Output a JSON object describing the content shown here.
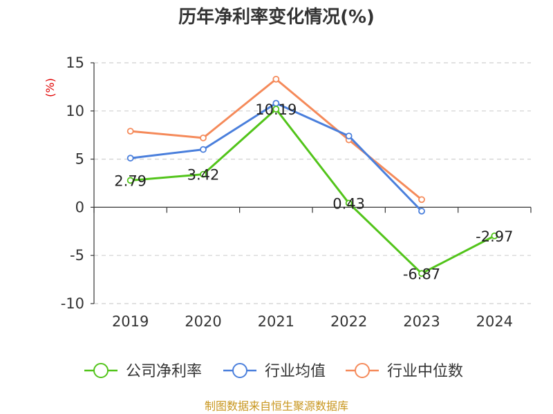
{
  "chart_data": {
    "type": "line",
    "title": "历年净利率变化情况(%)",
    "ylabel": "(%)",
    "xlabel": "",
    "categories": [
      "2019",
      "2020",
      "2021",
      "2022",
      "2023",
      "2024"
    ],
    "ylim": [
      -10,
      15
    ],
    "yticks": [
      "15",
      "10",
      "5",
      "0",
      "-5",
      "-10"
    ],
    "grid": true,
    "legend_position": "bottom",
    "series": [
      {
        "name": "公司净利率",
        "color": "#52c41a",
        "values": [
          2.79,
          3.42,
          10.19,
          0.43,
          -6.87,
          -2.97
        ],
        "labels": [
          "2.79",
          "3.42",
          "10.19",
          "0.43",
          "-6.87",
          "-2.97"
        ]
      },
      {
        "name": "行业均值",
        "color": "#4a7fdc",
        "values": [
          5.1,
          6.0,
          10.8,
          7.4,
          -0.4,
          null
        ]
      },
      {
        "name": "行业中位数",
        "color": "#f58a5a",
        "values": [
          7.9,
          7.2,
          13.3,
          7.0,
          0.8,
          null
        ]
      }
    ]
  },
  "source": "制图数据来自恒生聚源数据库"
}
